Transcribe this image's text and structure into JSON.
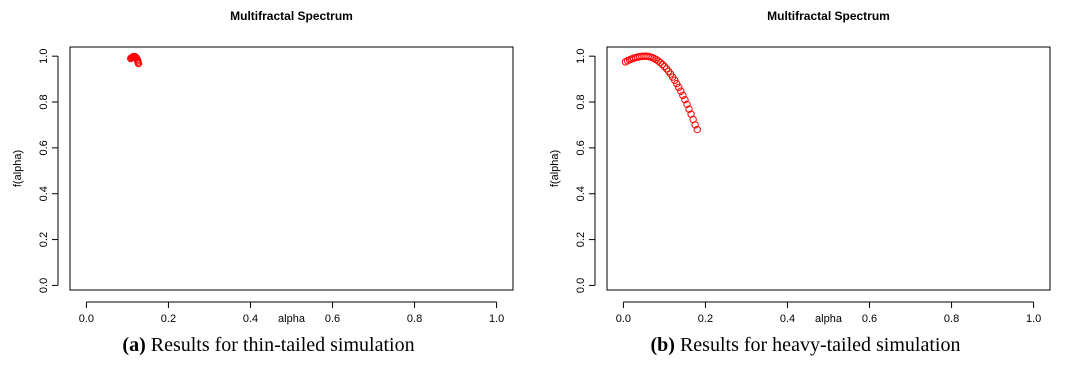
{
  "chart_data": [
    {
      "type": "scatter",
      "title": "Multifractal Spectrum",
      "xlabel": "alpha",
      "ylabel": "f(alpha)",
      "xlim": [
        -0.04,
        1.04
      ],
      "ylim": [
        -0.02,
        1.04
      ],
      "xticks": [
        "0.0",
        "0.2",
        "0.4",
        "0.6",
        "0.8",
        "1.0"
      ],
      "yticks": [
        "0.0",
        "0.2",
        "0.4",
        "0.6",
        "0.8",
        "1.0"
      ],
      "marker": "open-circle",
      "color": "#ff0000",
      "grid": false,
      "caption_label": "(a)",
      "caption_text": "Results for thin-tailed simulation",
      "points": [
        [
          0.108,
          0.99
        ],
        [
          0.11,
          0.993
        ],
        [
          0.112,
          0.995
        ],
        [
          0.114,
          0.997
        ],
        [
          0.116,
          0.998
        ],
        [
          0.118,
          0.998
        ],
        [
          0.12,
          0.996
        ],
        [
          0.122,
          0.992
        ],
        [
          0.124,
          0.986
        ],
        [
          0.125,
          0.98
        ],
        [
          0.126,
          0.974
        ],
        [
          0.127,
          0.968
        ]
      ]
    },
    {
      "type": "scatter",
      "title": "Multifractal Spectrum",
      "xlabel": "alpha",
      "ylabel": "f(alpha)",
      "xlim": [
        -0.04,
        1.04
      ],
      "ylim": [
        -0.02,
        1.04
      ],
      "xticks": [
        "0.0",
        "0.2",
        "0.4",
        "0.6",
        "0.8",
        "1.0"
      ],
      "yticks": [
        "0.0",
        "0.2",
        "0.4",
        "0.6",
        "0.8",
        "1.0"
      ],
      "marker": "open-circle",
      "color": "#ff0000",
      "grid": false,
      "caption_label": "(b)",
      "caption_text": "Results for heavy-tailed simulation",
      "points": [
        [
          0.005,
          0.975
        ],
        [
          0.01,
          0.98
        ],
        [
          0.015,
          0.984
        ],
        [
          0.02,
          0.988
        ],
        [
          0.025,
          0.991
        ],
        [
          0.03,
          0.994
        ],
        [
          0.035,
          0.996
        ],
        [
          0.04,
          0.998
        ],
        [
          0.045,
          0.999
        ],
        [
          0.05,
          1.0
        ],
        [
          0.055,
          1.0
        ],
        [
          0.06,
          0.999
        ],
        [
          0.065,
          0.997
        ],
        [
          0.07,
          0.994
        ],
        [
          0.075,
          0.99
        ],
        [
          0.08,
          0.985
        ],
        [
          0.085,
          0.979
        ],
        [
          0.09,
          0.972
        ],
        [
          0.095,
          0.964
        ],
        [
          0.1,
          0.955
        ],
        [
          0.105,
          0.945
        ],
        [
          0.11,
          0.934
        ],
        [
          0.115,
          0.922
        ],
        [
          0.12,
          0.909
        ],
        [
          0.125,
          0.895
        ],
        [
          0.13,
          0.88
        ],
        [
          0.135,
          0.864
        ],
        [
          0.14,
          0.847
        ],
        [
          0.145,
          0.829
        ],
        [
          0.15,
          0.81
        ],
        [
          0.155,
          0.79
        ],
        [
          0.16,
          0.769
        ],
        [
          0.165,
          0.747
        ],
        [
          0.17,
          0.724
        ],
        [
          0.175,
          0.7
        ],
        [
          0.18,
          0.68
        ]
      ]
    }
  ]
}
